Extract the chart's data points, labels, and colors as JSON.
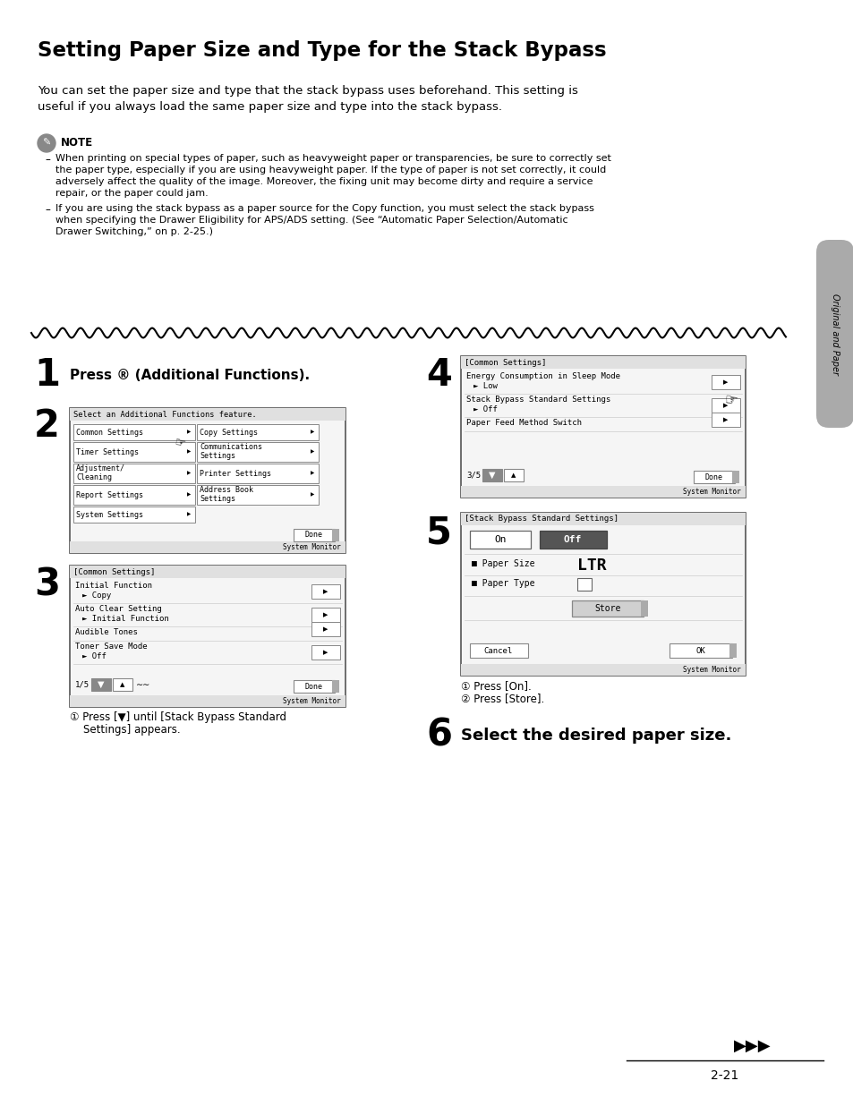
{
  "title": "Setting Paper Size and Type for the Stack Bypass",
  "intro_line1": "You can set the paper size and type that the stack bypass uses beforehand. This setting is",
  "intro_line2": "useful if you always load the same paper size and type into the stack bypass.",
  "note_label": "NOTE",
  "note_bullet1_lines": [
    "When printing on special types of paper, such as heavyweight paper or transparencies, be sure to correctly set",
    "the paper type, especially if you are using heavyweight paper. If the type of paper is not set correctly, it could",
    "adversely affect the quality of the image. Moreover, the fixing unit may become dirty and require a service",
    "repair, or the paper could jam."
  ],
  "note_bullet2_lines": [
    "If you are using the stack bypass as a paper source for the Copy function, you must select the stack bypass",
    "when specifying the Drawer Eligibility for APS/ADS setting. (See “Automatic Paper Selection/Automatic",
    "Drawer Switching,” on p. 2-25.)"
  ],
  "step1_text": "Press ® (Additional Functions).",
  "step3_sub1": "① Press [▼] until [Stack Bypass Standard",
  "step3_sub2": "Settings] appears.",
  "step5_sub1": "① Press [On].",
  "step5_sub2": "② Press [Store].",
  "step6_text": "Select the desired paper size.",
  "sidebar_text": "Original and Paper",
  "page_number": "2-21",
  "bg_color": "#ffffff"
}
